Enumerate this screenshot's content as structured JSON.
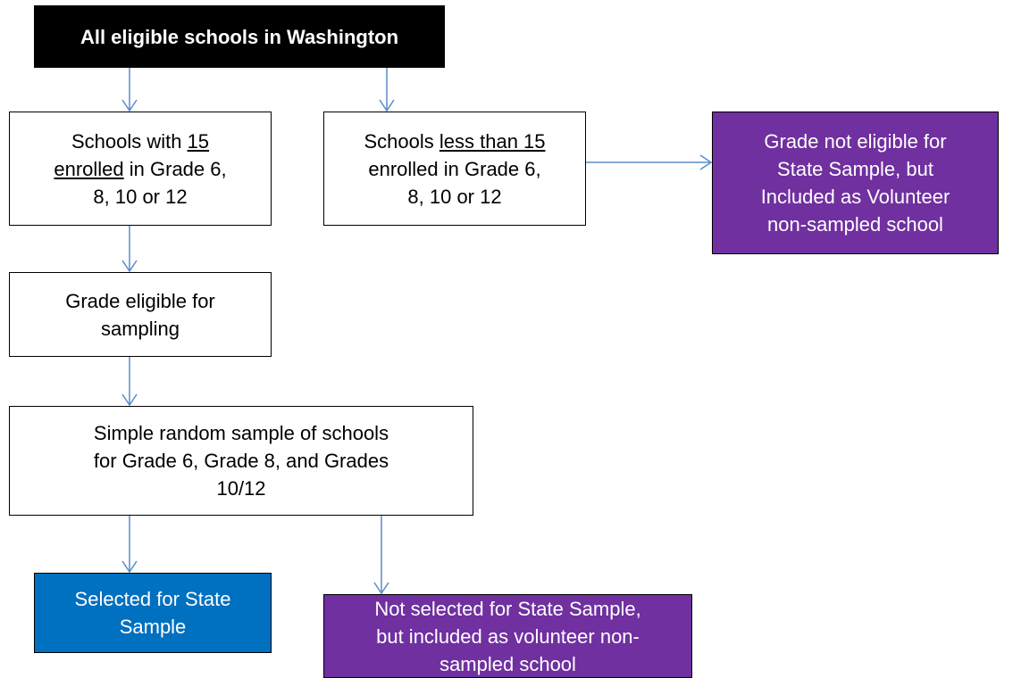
{
  "nodes": [
    {
      "lines": [
        [
          "All eligible schools in Washington"
        ]
      ]
    },
    {
      "lines": [
        [
          "Schools with ",
          {
            "text": "15",
            "underline": true
          }
        ],
        [
          {
            "text": "enrolled",
            "underline": true
          },
          " in Grade 6,"
        ],
        [
          "8, 10 or 12"
        ]
      ]
    },
    {
      "lines": [
        [
          "Schools ",
          {
            "text": "less than 15",
            "underline": true
          }
        ],
        [
          "enrolled in Grade 6,"
        ],
        [
          "8, 10 or 12"
        ]
      ]
    },
    {
      "lines": [
        [
          "Grade not eligible for"
        ],
        [
          "State Sample, but"
        ],
        [
          "Included as Volunteer"
        ],
        [
          "non-sampled school"
        ]
      ]
    },
    {
      "lines": [
        [
          "Grade eligible for"
        ],
        [
          "sampling"
        ]
      ]
    },
    {
      "lines": [
        [
          "Simple random sample of schools"
        ],
        [
          "for Grade 6, Grade 8, and Grades"
        ],
        [
          "10/12"
        ]
      ]
    },
    {
      "lines": [
        [
          "Selected for State"
        ],
        [
          "Sample"
        ]
      ]
    },
    {
      "lines": [
        [
          "Not selected for State Sample,"
        ],
        [
          "but included as volunteer non-"
        ],
        [
          "sampled school"
        ]
      ]
    }
  ]
}
